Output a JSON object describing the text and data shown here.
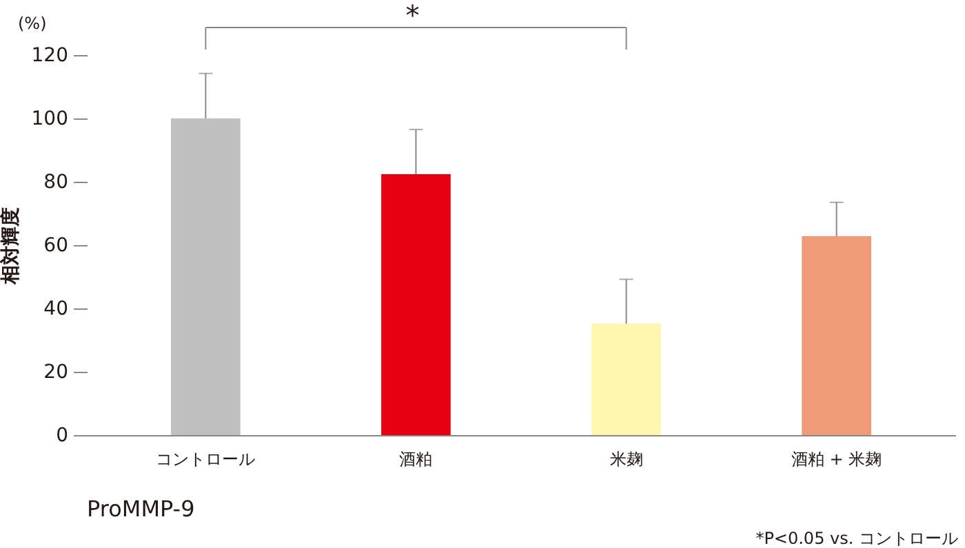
{
  "chart_data": {
    "type": "bar",
    "title": "ProMMP-9",
    "ylabel": "相対輝度",
    "categories": [
      "コントロール",
      "酒粕",
      "米麹",
      "酒粕 + 米麹"
    ],
    "values": [
      100,
      82.4,
      35.2,
      62.8
    ],
    "colors": [
      "#bfc0bf",
      "#e50012",
      "#fff7b0",
      "#f09b77"
    ],
    "errors": [
      [
        100,
        114.2
      ],
      [
        82.4,
        96.5
      ],
      [
        35.2,
        49.2
      ],
      [
        62.8,
        73.5
      ]
    ],
    "ylim": [
      0,
      120
    ],
    "yticks": [
      0,
      20,
      40,
      60,
      80,
      100,
      120
    ],
    "annotations": [
      "(%)",
      "*",
      "*P<0.05 vs. コントロール"
    ],
    "grid": false
  }
}
